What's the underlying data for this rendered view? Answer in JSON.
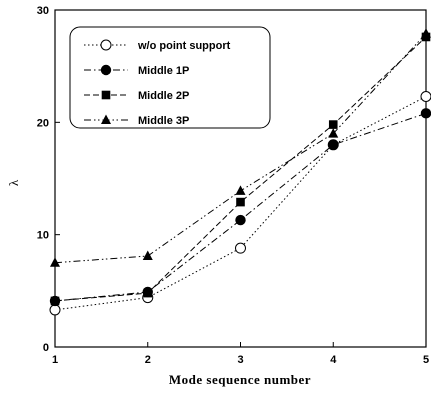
{
  "chart_data": {
    "type": "line",
    "title": "",
    "xlabel": "Mode sequence number",
    "ylabel": "λ",
    "x": [
      1,
      2,
      3,
      4,
      5
    ],
    "xlim": [
      1,
      5
    ],
    "ylim": [
      0,
      30
    ],
    "xticks": [
      1,
      2,
      3,
      4,
      5
    ],
    "yticks": [
      0,
      10,
      20,
      30
    ],
    "grid": false,
    "legend_position": "top-left",
    "series": [
      {
        "name": "w/o point support",
        "marker": "open-circle",
        "dash": "dotted",
        "values": [
          3.3,
          4.4,
          8.8,
          18.0,
          22.3
        ]
      },
      {
        "name": "Middle 1P",
        "marker": "filled-circle",
        "dash": "dash-dot",
        "values": [
          4.1,
          4.9,
          11.3,
          18.0,
          20.8
        ]
      },
      {
        "name": "Middle 2P",
        "marker": "filled-square",
        "dash": "dashed",
        "values": [
          4.1,
          4.8,
          12.9,
          19.8,
          27.6
        ]
      },
      {
        "name": "Middle 3P",
        "marker": "filled-triangle",
        "dash": "dash-dot-dot",
        "values": [
          7.5,
          8.1,
          13.9,
          19.0,
          27.9
        ]
      }
    ]
  }
}
